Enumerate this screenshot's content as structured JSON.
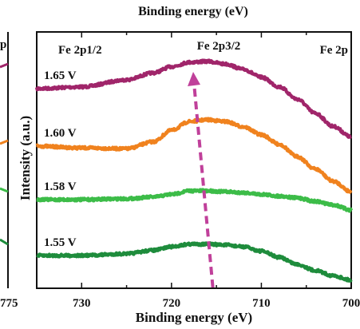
{
  "top_caption": "Binding energy (eV)",
  "left_panel_tick": "775",
  "left_panel_fragment": "p",
  "chart_data": {
    "type": "line",
    "title": "",
    "xlabel": "Binding energy (eV)",
    "ylabel": "Intensity (a.u.)",
    "x_reversed": true,
    "xlim": [
      735,
      700
    ],
    "x_ticks": [
      730,
      720,
      710,
      700
    ],
    "x_tick_labels": [
      "730",
      "720",
      "710",
      "700"
    ],
    "grid": false,
    "annotations": {
      "left": "Fe 2p1/2",
      "center": "Fe 2p3/2",
      "right": "Fe 2p"
    },
    "peak_arrow": {
      "from_x": 717.5,
      "to_x": 715.4,
      "direction": "down"
    },
    "x": [
      735,
      730,
      725,
      722,
      720,
      718,
      716,
      714,
      712,
      710,
      708,
      706,
      704,
      702,
      700
    ],
    "series": [
      {
        "name": "1.65 V",
        "color": "#a0256a",
        "values": [
          0.0,
          0.02,
          0.1,
          0.18,
          0.25,
          0.3,
          0.31,
          0.28,
          0.22,
          0.13,
          0.02,
          -0.12,
          -0.28,
          -0.43,
          -0.55
        ]
      },
      {
        "name": "1.60 V",
        "color": "#f0821e",
        "values": [
          0.0,
          -0.02,
          -0.03,
          0.05,
          0.18,
          0.28,
          0.3,
          0.28,
          0.22,
          0.13,
          0.02,
          -0.12,
          -0.26,
          -0.4,
          -0.52
        ]
      },
      {
        "name": "1.58 V",
        "color": "#3cbc48",
        "values": [
          0.0,
          0.0,
          0.01,
          0.03,
          0.06,
          0.1,
          0.1,
          0.09,
          0.08,
          0.06,
          0.04,
          0.02,
          -0.02,
          -0.06,
          -0.12
        ]
      },
      {
        "name": "1.55 V",
        "color": "#1e8c3c",
        "values": [
          0.0,
          0.0,
          0.02,
          0.06,
          0.1,
          0.13,
          0.13,
          0.12,
          0.1,
          0.05,
          -0.02,
          -0.1,
          -0.17,
          -0.23,
          -0.28
        ]
      }
    ]
  }
}
